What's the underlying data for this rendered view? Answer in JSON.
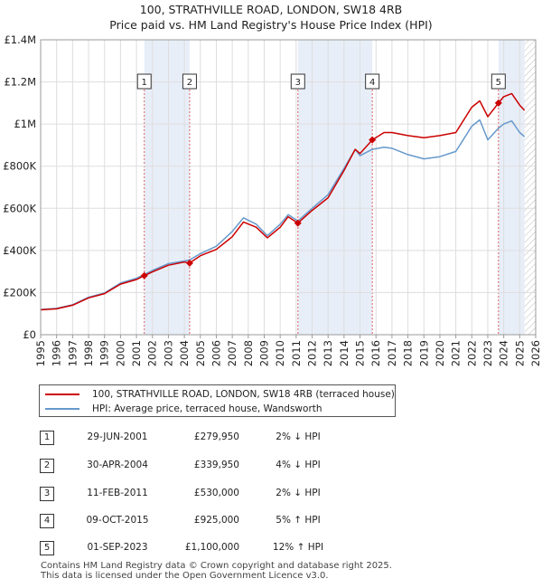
{
  "title_line1": "100, STRATHVILLE ROAD, LONDON, SW18 4RB",
  "title_line2": "Price paid vs. HM Land Registry's House Price Index (HPI)",
  "colors": {
    "property": "#cc0000",
    "hpi": "#6699cc",
    "shade": "#e8eef8",
    "hatch": "#bbbbbb"
  },
  "chart_data": {
    "type": "line",
    "xlim": [
      1995,
      2026
    ],
    "ylim": [
      0,
      1400000
    ],
    "y_ticks": [
      {
        "value": 0,
        "label": "£0"
      },
      {
        "value": 200000,
        "label": "£200K"
      },
      {
        "value": 400000,
        "label": "£400K"
      },
      {
        "value": 600000,
        "label": "£600K"
      },
      {
        "value": 800000,
        "label": "£800K"
      },
      {
        "value": 1000000,
        "label": "£1M"
      },
      {
        "value": 1200000,
        "label": "£1.2M"
      },
      {
        "value": 1400000,
        "label": "£1.4M"
      }
    ],
    "x_ticks": [
      "1995",
      "1996",
      "1997",
      "1998",
      "1999",
      "2000",
      "2001",
      "2002",
      "2003",
      "2004",
      "2005",
      "2006",
      "2007",
      "2008",
      "2009",
      "2010",
      "2011",
      "2012",
      "2013",
      "2014",
      "2015",
      "2016",
      "2017",
      "2018",
      "2019",
      "2020",
      "2021",
      "2022",
      "2023",
      "2024",
      "2025",
      "2026"
    ],
    "shaded_ranges": [
      [
        2001.49,
        2004.33
      ],
      [
        2011.11,
        2015.77
      ],
      [
        2023.67,
        2025.3
      ]
    ],
    "hatch_range": [
      2025.3,
      2026
    ],
    "series": [
      {
        "name": "100, STRATHVILLE ROAD, LONDON, SW18 4RB (terraced house)",
        "x": [
          1995.0,
          1996.0,
          1997.0,
          1998.0,
          1999.0,
          2000.0,
          2001.0,
          2001.49,
          2002.0,
          2003.0,
          2004.0,
          2004.33,
          2005.0,
          2006.0,
          2007.0,
          2007.7,
          2008.5,
          2009.2,
          2010.0,
          2010.5,
          2011.11,
          2012.0,
          2013.0,
          2014.0,
          2014.7,
          2015.0,
          2015.77,
          2016.5,
          2017.0,
          2018.0,
          2019.0,
          2020.0,
          2021.0,
          2022.0,
          2022.5,
          2023.0,
          2023.67,
          2024.0,
          2024.5,
          2025.0,
          2025.3
        ],
        "y": [
          118000,
          123000,
          140000,
          175000,
          195000,
          240000,
          262000,
          279950,
          298000,
          330000,
          345000,
          339950,
          375000,
          405000,
          465000,
          535000,
          510000,
          460000,
          510000,
          560000,
          530000,
          590000,
          650000,
          780000,
          880000,
          860000,
          925000,
          960000,
          960000,
          945000,
          935000,
          945000,
          960000,
          1080000,
          1110000,
          1035000,
          1100000,
          1130000,
          1145000,
          1090000,
          1065000
        ]
      },
      {
        "name": "HPI: Average price, terraced house, Wandsworth",
        "x": [
          1995.0,
          1996.0,
          1997.0,
          1998.0,
          1999.0,
          2000.0,
          2001.0,
          2001.49,
          2002.0,
          2003.0,
          2004.0,
          2004.33,
          2005.0,
          2006.0,
          2007.0,
          2007.7,
          2008.5,
          2009.2,
          2010.0,
          2010.5,
          2011.11,
          2012.0,
          2013.0,
          2014.0,
          2014.7,
          2015.0,
          2015.77,
          2016.5,
          2017.0,
          2018.0,
          2019.0,
          2020.0,
          2021.0,
          2022.0,
          2022.5,
          2023.0,
          2023.67,
          2024.0,
          2024.5,
          2025.0,
          2025.3
        ],
        "y": [
          120000,
          125000,
          142000,
          178000,
          198000,
          245000,
          268000,
          285000,
          305000,
          337000,
          350000,
          355000,
          385000,
          420000,
          490000,
          555000,
          525000,
          470000,
          525000,
          570000,
          540000,
          600000,
          665000,
          790000,
          880000,
          850000,
          880000,
          890000,
          885000,
          855000,
          835000,
          845000,
          870000,
          990000,
          1020000,
          925000,
          980000,
          1000000,
          1015000,
          960000,
          940000
        ]
      }
    ],
    "sales": [
      {
        "num": "1",
        "year": 2001.49,
        "price": 279950,
        "date": "29-JUN-2001",
        "price_label": "£279,950",
        "hpi_label": "2% ↓ HPI"
      },
      {
        "num": "2",
        "year": 2004.33,
        "price": 339950,
        "date": "30-APR-2004",
        "price_label": "£339,950",
        "hpi_label": "4% ↓ HPI"
      },
      {
        "num": "3",
        "year": 2011.11,
        "price": 530000,
        "date": "11-FEB-2011",
        "price_label": "£530,000",
        "hpi_label": "2% ↓ HPI"
      },
      {
        "num": "4",
        "year": 2015.77,
        "price": 925000,
        "date": "09-OCT-2015",
        "price_label": "£925,000",
        "hpi_label": "5% ↑ HPI"
      },
      {
        "num": "5",
        "year": 2023.67,
        "price": 1100000,
        "date": "01-SEP-2023",
        "price_label": "£1,100,000",
        "hpi_label": "12% ↑ HPI"
      }
    ]
  },
  "legend": {
    "property": "100, STRATHVILLE ROAD, LONDON, SW18 4RB (terraced house)",
    "hpi": "HPI: Average price, terraced house, Wandsworth"
  },
  "footer_line1": "Contains HM Land Registry data © Crown copyright and database right 2025.",
  "footer_line2": "This data is licensed under the Open Government Licence v3.0."
}
